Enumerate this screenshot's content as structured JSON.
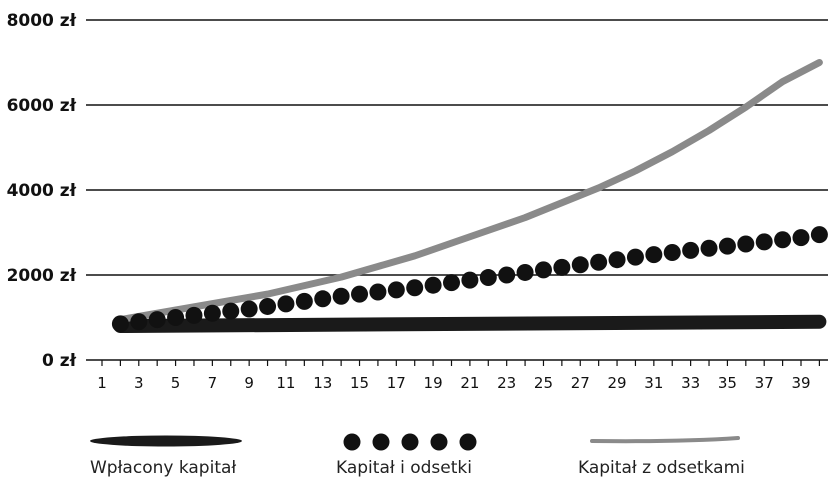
{
  "colors": {
    "principal": "#1a1a1a",
    "dots": "#111111",
    "curve": "#8a8a8a",
    "grid": "#111111"
  },
  "chart_data": {
    "type": "line",
    "title": "",
    "xlabel": "",
    "ylabel": "",
    "ylim": [
      0,
      8000
    ],
    "yticks": [
      0,
      2000,
      4000,
      6000,
      8000
    ],
    "ytick_labels": [
      "0 zł",
      "2000 zł",
      "4000 zł",
      "6000 zł",
      "8000 zł"
    ],
    "xlim": [
      1,
      40
    ],
    "xtick_labels": [
      "1",
      "3",
      "5",
      "7",
      "9",
      "11",
      "13",
      "15",
      "17",
      "19",
      "21",
      "23",
      "25",
      "27",
      "29",
      "31",
      "33",
      "35",
      "37",
      "39"
    ],
    "grid": true,
    "legend_position": "bottom",
    "series": [
      {
        "name": "Wpłacony kapitał",
        "style": "brush-stroke",
        "x": [
          2,
          40
        ],
        "values": [
          800,
          900
        ]
      },
      {
        "name": "Kapitał i odsetki",
        "style": "dots",
        "x": [
          2,
          3,
          4,
          5,
          6,
          7,
          8,
          9,
          10,
          11,
          12,
          13,
          14,
          15,
          16,
          17,
          18,
          19,
          20,
          21,
          22,
          23,
          24,
          25,
          26,
          27,
          28,
          29,
          30,
          31,
          32,
          33,
          34,
          35,
          36,
          37,
          38,
          39,
          40
        ],
        "values": [
          850,
          900,
          950,
          1000,
          1050,
          1100,
          1150,
          1200,
          1260,
          1320,
          1380,
          1440,
          1500,
          1550,
          1600,
          1650,
          1700,
          1760,
          1820,
          1880,
          1940,
          2000,
          2060,
          2120,
          2180,
          2240,
          2300,
          2360,
          2420,
          2480,
          2530,
          2580,
          2630,
          2680,
          2730,
          2780,
          2830,
          2880,
          2950
        ]
      },
      {
        "name": "Kapitał z odsetkami",
        "style": "gray-stroke",
        "x": [
          2,
          4,
          6,
          8,
          10,
          12,
          14,
          16,
          18,
          20,
          22,
          24,
          26,
          28,
          30,
          32,
          34,
          36,
          38,
          40
        ],
        "values": [
          950,
          1100,
          1250,
          1400,
          1550,
          1750,
          1950,
          2200,
          2450,
          2750,
          3050,
          3350,
          3700,
          4050,
          4450,
          4900,
          5400,
          5950,
          6550,
          7000
        ]
      }
    ]
  }
}
